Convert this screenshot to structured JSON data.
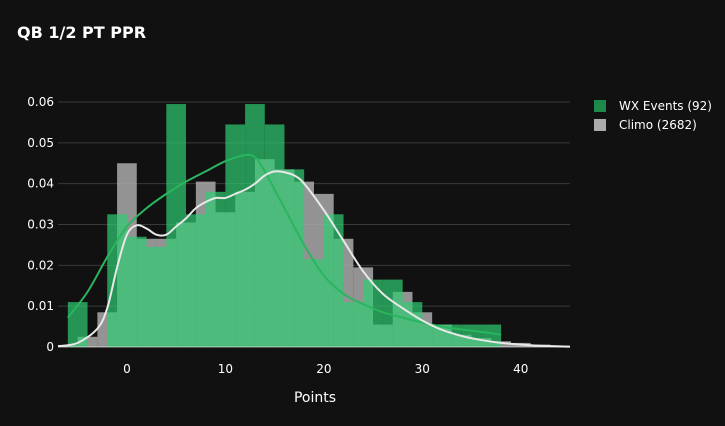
{
  "chart_data": {
    "type": "bar",
    "title": "QB 1/2 PT PPR",
    "xlabel": "Points",
    "ylabel": "",
    "xlim": [
      -7,
      45
    ],
    "ylim": [
      0,
      0.06
    ],
    "xticks": [
      0,
      10,
      20,
      30,
      40
    ],
    "yticks": [
      0,
      0.01,
      0.02,
      0.03,
      0.04,
      0.05,
      0.06
    ],
    "ytick_labels": [
      "0",
      "0.01",
      "0.02",
      "0.03",
      "0.04",
      "0.05",
      "0.06"
    ],
    "grid": "horizontal",
    "legend_position": "top-right",
    "barmode": "overlay",
    "series": [
      {
        "name": "WX Events (92)",
        "type": "histogram",
        "color": "#2ecc71",
        "legend_color": "#1e8a4a",
        "bins": [
          {
            "x0": -6,
            "x1": -4,
            "y": 0.011
          },
          {
            "x0": -4,
            "x1": -2,
            "y": 0
          },
          {
            "x0": -2,
            "x1": 0,
            "y": 0.0325
          },
          {
            "x0": 0,
            "x1": 2,
            "y": 0.027
          },
          {
            "x0": 2,
            "x1": 4,
            "y": 0.0245
          },
          {
            "x0": 4,
            "x1": 6,
            "y": 0.0595
          },
          {
            "x0": 6,
            "x1": 8,
            "y": 0.0325
          },
          {
            "x0": 8,
            "x1": 10,
            "y": 0.038
          },
          {
            "x0": 10,
            "x1": 12,
            "y": 0.0545
          },
          {
            "x0": 12,
            "x1": 14,
            "y": 0.0595
          },
          {
            "x0": 14,
            "x1": 16,
            "y": 0.0545
          },
          {
            "x0": 16,
            "x1": 18,
            "y": 0.0435
          },
          {
            "x0": 18,
            "x1": 20,
            "y": 0.0215
          },
          {
            "x0": 20,
            "x1": 22,
            "y": 0.0325
          },
          {
            "x0": 22,
            "x1": 24,
            "y": 0.011
          },
          {
            "x0": 24,
            "x1": 26,
            "y": 0.0165
          },
          {
            "x0": 26,
            "x1": 28,
            "y": 0.0165
          },
          {
            "x0": 28,
            "x1": 30,
            "y": 0.011
          },
          {
            "x0": 30,
            "x1": 32,
            "y": 0.0055
          },
          {
            "x0": 32,
            "x1": 34,
            "y": 0.0055
          },
          {
            "x0": 34,
            "x1": 36,
            "y": 0.0055
          },
          {
            "x0": 36,
            "x1": 38,
            "y": 0.0055
          }
        ],
        "kde": {
          "x": [
            -6,
            -4,
            -2,
            0,
            2,
            4,
            6,
            8,
            10,
            12,
            13,
            14,
            16,
            18,
            20,
            22,
            24,
            26,
            28,
            30,
            32,
            34,
            36,
            38
          ],
          "y": [
            0.0072,
            0.0135,
            0.022,
            0.0295,
            0.034,
            0.0375,
            0.0405,
            0.043,
            0.0455,
            0.047,
            0.0465,
            0.043,
            0.034,
            0.025,
            0.0175,
            0.013,
            0.0105,
            0.0085,
            0.0072,
            0.006,
            0.005,
            0.0043,
            0.0037,
            0.003
          ]
        }
      },
      {
        "name": "Climo (2682)",
        "type": "histogram",
        "color": "#aaaaaa",
        "legend_color": "#aaaaaa",
        "bins": [
          {
            "x0": -7,
            "x1": -5,
            "y": 0.0005
          },
          {
            "x0": -5,
            "x1": -3,
            "y": 0.0025
          },
          {
            "x0": -3,
            "x1": -1,
            "y": 0.0085
          },
          {
            "x0": -1,
            "x1": 1,
            "y": 0.045
          },
          {
            "x0": 1,
            "x1": 3,
            "y": 0.0265
          },
          {
            "x0": 3,
            "x1": 5,
            "y": 0.0265
          },
          {
            "x0": 5,
            "x1": 7,
            "y": 0.0305
          },
          {
            "x0": 7,
            "x1": 9,
            "y": 0.0405
          },
          {
            "x0": 9,
            "x1": 11,
            "y": 0.033
          },
          {
            "x0": 11,
            "x1": 13,
            "y": 0.038
          },
          {
            "x0": 13,
            "x1": 15,
            "y": 0.046
          },
          {
            "x0": 15,
            "x1": 17,
            "y": 0.0435
          },
          {
            "x0": 17,
            "x1": 19,
            "y": 0.0405
          },
          {
            "x0": 19,
            "x1": 21,
            "y": 0.0375
          },
          {
            "x0": 21,
            "x1": 23,
            "y": 0.0265
          },
          {
            "x0": 23,
            "x1": 25,
            "y": 0.0195
          },
          {
            "x0": 25,
            "x1": 27,
            "y": 0.0055
          },
          {
            "x0": 27,
            "x1": 29,
            "y": 0.0135
          },
          {
            "x0": 29,
            "x1": 31,
            "y": 0.0085
          },
          {
            "x0": 31,
            "x1": 33,
            "y": 0.0055
          },
          {
            "x0": 33,
            "x1": 35,
            "y": 0.003
          },
          {
            "x0": 35,
            "x1": 37,
            "y": 0.0022
          },
          {
            "x0": 37,
            "x1": 39,
            "y": 0.0014
          },
          {
            "x0": 39,
            "x1": 41,
            "y": 0.001
          },
          {
            "x0": 41,
            "x1": 43,
            "y": 0.0006
          },
          {
            "x0": 43,
            "x1": 45,
            "y": 0.0003
          }
        ],
        "kde": {
          "x": [
            -7,
            -5,
            -3,
            -2,
            -1,
            0,
            1,
            2,
            3,
            4,
            5,
            6,
            7,
            8,
            9,
            10,
            11,
            12,
            13,
            14,
            15,
            16,
            17,
            18,
            20,
            22,
            24,
            26,
            28,
            30,
            32,
            34,
            36,
            38,
            40,
            42,
            45
          ],
          "y": [
            0.0002,
            0.001,
            0.0045,
            0.0095,
            0.0195,
            0.0275,
            0.0298,
            0.029,
            0.0275,
            0.0275,
            0.0295,
            0.0315,
            0.034,
            0.0355,
            0.0365,
            0.0365,
            0.0375,
            0.0385,
            0.04,
            0.042,
            0.043,
            0.0428,
            0.042,
            0.04,
            0.0335,
            0.026,
            0.0185,
            0.013,
            0.0095,
            0.0065,
            0.0042,
            0.0027,
            0.0017,
            0.001,
            0.0006,
            0.0003,
            0.0001
          ]
        }
      }
    ]
  }
}
